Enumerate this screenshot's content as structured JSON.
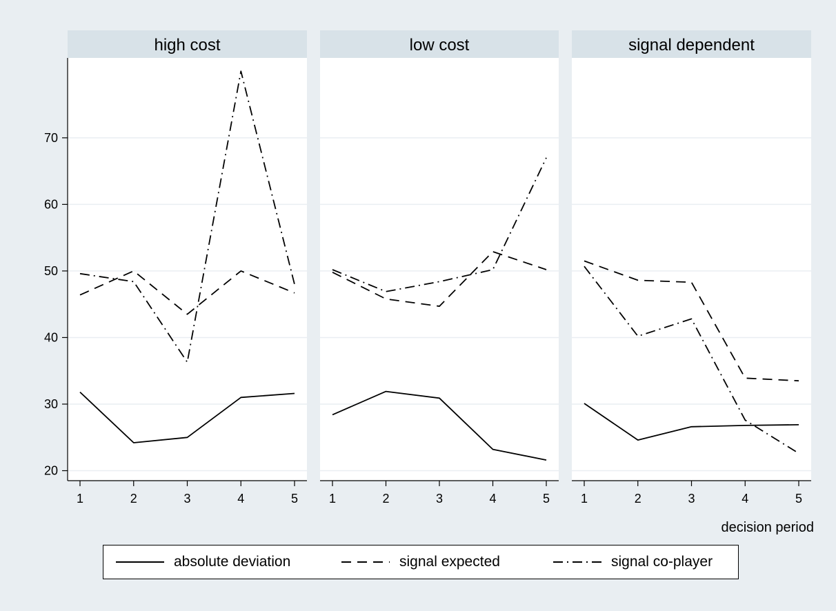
{
  "chart_data": {
    "type": "line",
    "xlabel": "decision period",
    "ylabel": "",
    "ylim": [
      18.5,
      82
    ],
    "yticks": [
      20,
      30,
      40,
      50,
      60,
      70
    ],
    "x": [
      1,
      2,
      3,
      4,
      5
    ],
    "xticks": [
      "1",
      "2",
      "3",
      "4",
      "5"
    ],
    "grid": true,
    "legend_position": "bottom",
    "series_styles": [
      {
        "name": "absolute deviation",
        "dash": "none",
        "color": "#000000"
      },
      {
        "name": "signal expected",
        "dash": "dashed",
        "color": "#000000"
      },
      {
        "name": "signal co-player",
        "dash": "dash-dot",
        "color": "#000000"
      }
    ],
    "panels": [
      {
        "title": "high cost",
        "series": [
          {
            "name": "absolute deviation",
            "values": [
              31.8,
              24.2,
              25.0,
              31.0,
              31.6
            ]
          },
          {
            "name": "signal expected",
            "values": [
              46.4,
              50.0,
              43.5,
              50.0,
              46.7
            ]
          },
          {
            "name": "signal co-player",
            "values": [
              49.6,
              48.4,
              36.3,
              80.0,
              48.0
            ]
          }
        ]
      },
      {
        "title": "low cost",
        "series": [
          {
            "name": "absolute deviation",
            "values": [
              28.4,
              31.9,
              30.9,
              23.2,
              21.6
            ]
          },
          {
            "name": "signal expected",
            "values": [
              49.8,
              45.8,
              44.7,
              52.9,
              50.2
            ]
          },
          {
            "name": "signal co-player",
            "values": [
              50.2,
              46.9,
              48.4,
              50.2,
              67.0
            ]
          }
        ]
      },
      {
        "title": "signal dependent",
        "series": [
          {
            "name": "absolute deviation",
            "values": [
              30.1,
              24.6,
              26.6,
              26.8,
              26.9
            ]
          },
          {
            "name": "signal expected",
            "values": [
              51.5,
              48.6,
              48.3,
              33.9,
              33.5
            ]
          },
          {
            "name": "signal co-player",
            "values": [
              50.7,
              40.2,
              42.8,
              27.6,
              22.6
            ]
          }
        ]
      }
    ]
  }
}
